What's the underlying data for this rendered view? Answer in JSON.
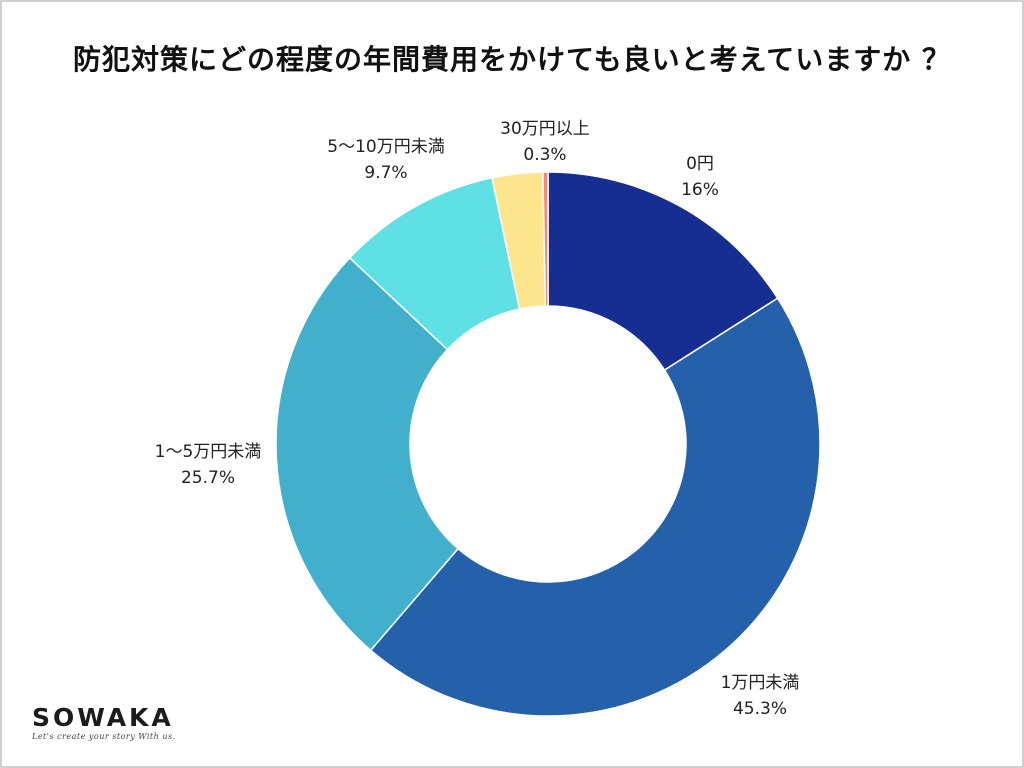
{
  "brand": {
    "name": "SOWAKA",
    "tagline": "Let's create your story With us."
  },
  "chart_data": {
    "type": "pie",
    "variant": "donut",
    "title": "防犯対策にどの程度の年間費用をかけても良いと考えていますか ？",
    "slices": [
      {
        "label": "0円",
        "value": 16,
        "value_text": "16%",
        "color": "#162d92"
      },
      {
        "label": "1万円未満",
        "value": 45.3,
        "value_text": "45.3%",
        "color": "#2560aa"
      },
      {
        "label": "1〜5万円未満",
        "value": 25.7,
        "value_text": "25.7%",
        "color": "#42b0cd"
      },
      {
        "label": "5〜10万円未満",
        "value": 9.7,
        "value_text": "9.7%",
        "color": "#5fe0e5"
      },
      {
        "label": "30万円以上",
        "value": 0.3,
        "value_text": "0.3%",
        "color": "#f08a7a"
      }
    ],
    "unlabeled_slices": [
      {
        "value": 3.0,
        "color": "#fde58e"
      }
    ],
    "legend": "none",
    "start": "top",
    "direction": "clockwise"
  }
}
